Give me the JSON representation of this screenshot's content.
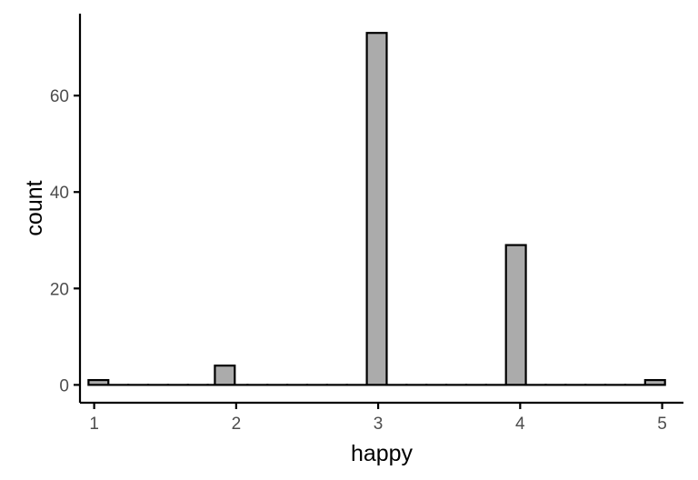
{
  "chart_data": {
    "type": "bar",
    "title": "",
    "xlabel": "happy",
    "ylabel": "count",
    "xlim": [
      0.9,
      5.15
    ],
    "ylim": [
      -3.7,
      77
    ],
    "grid": false,
    "bin_width": 0.14,
    "x_ticks": [
      1,
      2,
      3,
      4,
      5
    ],
    "y_ticks": [
      0,
      20,
      40,
      60
    ],
    "bins": [
      {
        "x": 1.03,
        "count": 1
      },
      {
        "x": 1.17,
        "count": 0
      },
      {
        "x": 1.31,
        "count": 0
      },
      {
        "x": 1.45,
        "count": 0
      },
      {
        "x": 1.59,
        "count": 0
      },
      {
        "x": 1.73,
        "count": 0
      },
      {
        "x": 1.87,
        "count": 0
      },
      {
        "x": 2.01,
        "count": 0
      },
      {
        "x": 2.15,
        "count": 0
      },
      {
        "x": 2.29,
        "count": 0
      },
      {
        "x": 2.43,
        "count": 0
      },
      {
        "x": 2.57,
        "count": 0
      },
      {
        "x": 2.71,
        "count": 0
      },
      {
        "x": 2.85,
        "count": 0
      },
      {
        "x": 2.99,
        "count": 73
      },
      {
        "x": 3.13,
        "count": 0
      },
      {
        "x": 3.27,
        "count": 0
      },
      {
        "x": 3.41,
        "count": 0
      },
      {
        "x": 3.55,
        "count": 0
      },
      {
        "x": 3.69,
        "count": 0
      },
      {
        "x": 3.83,
        "count": 0
      },
      {
        "x": 3.97,
        "count": 29
      },
      {
        "x": 4.11,
        "count": 0
      },
      {
        "x": 4.25,
        "count": 0
      },
      {
        "x": 4.39,
        "count": 0
      },
      {
        "x": 4.53,
        "count": 0
      },
      {
        "x": 4.67,
        "count": 0
      },
      {
        "x": 4.81,
        "count": 0
      },
      {
        "x": 4.95,
        "count": 1
      }
    ],
    "highlight_bins": [
      {
        "x": 1.92,
        "count": 4
      }
    ],
    "colors": {
      "fill": "#ababab",
      "stroke": "#000000",
      "axis": "#000000",
      "tick_label": "#4d4d4d"
    }
  }
}
